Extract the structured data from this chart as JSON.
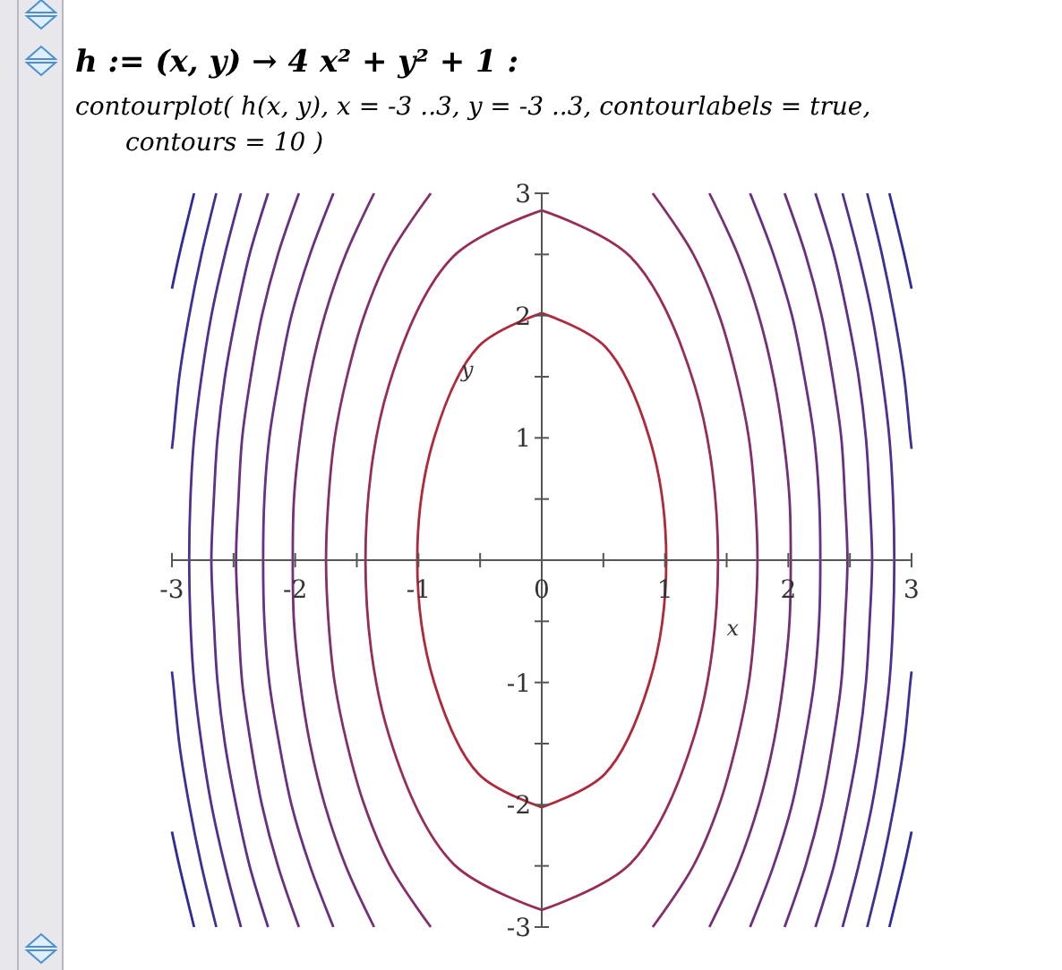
{
  "chart_data": {
    "type": "line",
    "title": "h := (x, y) → 4 x² + y² + 1 :",
    "subtitle": "contourplot( h(x, y), x = -3 ..3, y = -3 ..3, contourlabels = true, contours = 10 )",
    "xlabel": "x",
    "ylabel": "y",
    "xlim": [
      -3,
      3
    ],
    "ylim": [
      -3,
      3
    ],
    "xticks": [
      -3,
      {
        "value": -2.5,
        "label": null
      },
      -2,
      {
        "value": -1.5,
        "label": null
      },
      -1,
      {
        "value": -0.5,
        "label": null
      },
      0,
      {
        "value": 0.5,
        "label": null
      },
      1,
      {
        "value": 1.5,
        "label": null
      },
      2,
      {
        "value": 2.5,
        "label": null
      },
      3
    ],
    "yticks": [
      -3,
      {
        "value": -2.5,
        "label": null
      },
      -2,
      {
        "value": -1.5,
        "label": null
      },
      -1,
      {
        "value": -0.5,
        "label": null
      },
      {
        "value": 0,
        "label": null
      },
      {
        "value": 0.5,
        "label": null
      },
      1,
      {
        "value": 1.5,
        "label": null
      },
      2,
      {
        "value": 2.5,
        "label": null
      },
      3
    ],
    "grid": false,
    "marker": "none",
    "line_style": "solid",
    "series": [
      {
        "color": "#b0283a",
        "x": [
          0,
          0.51,
          0.87,
          1.01,
          0.87,
          0.51,
          0,
          null,
          0,
          -0.51,
          -0.87,
          -1.01,
          -0.87,
          -0.51,
          0
        ],
        "values": [
          -2.02,
          -1.75,
          -1.01,
          0,
          1.01,
          1.75,
          2.02,
          null,
          -2.02,
          -1.75,
          -1.01,
          0,
          1.01,
          1.75,
          2.02
        ]
      },
      {
        "color": "#982c58",
        "x": [
          0,
          0.72,
          1.24,
          1.43,
          1.24,
          0.72,
          0,
          null,
          0,
          -0.72,
          -1.24,
          -1.43,
          -1.24,
          -0.72,
          0
        ],
        "values": [
          -2.86,
          -2.48,
          -1.43,
          0,
          1.43,
          2.48,
          2.86,
          null,
          -2.86,
          -2.48,
          -1.43,
          0,
          1.43,
          2.48,
          2.86
        ]
      },
      {
        "color": "#842e6a",
        "x": [
          0.9,
          1.23,
          1.44,
          1.58,
          1.68,
          1.73,
          1.75,
          1.73,
          1.68,
          1.58,
          1.44,
          1.23,
          0.9,
          null,
          -0.9,
          -1.23,
          -1.44,
          -1.58,
          -1.68,
          -1.73,
          -1.75,
          -1.73,
          -1.68,
          -1.58,
          -1.44,
          -1.23,
          -0.9
        ],
        "values": [
          -3,
          -2.5,
          -2,
          -1.5,
          -1,
          -0.5,
          0,
          0.5,
          1,
          1.5,
          2,
          2.5,
          3,
          null,
          -3,
          -2.5,
          -2,
          -1.5,
          -1,
          -0.5,
          0,
          0.5,
          1,
          1.5,
          2,
          2.5,
          3
        ]
      },
      {
        "color": "#742f78",
        "x": [
          1.36,
          1.59,
          1.76,
          1.88,
          1.96,
          2.01,
          2.02,
          2.01,
          1.96,
          1.88,
          1.76,
          1.59,
          1.36,
          null,
          -1.36,
          -1.59,
          -1.76,
          -1.88,
          -1.96,
          -2.01,
          -2.02,
          -2.01,
          -1.96,
          -1.88,
          -1.76,
          -1.59,
          -1.36
        ],
        "values": [
          -3,
          -2.5,
          -2,
          -1.5,
          -1,
          -0.5,
          0,
          0.5,
          1,
          1.5,
          2,
          2.5,
          3,
          null,
          -3,
          -2.5,
          -2,
          -1.5,
          -1,
          -0.5,
          0,
          0.5,
          1,
          1.5,
          2,
          2.5,
          3
        ]
      },
      {
        "color": "#682f82",
        "x": [
          1.69,
          1.88,
          2.03,
          2.13,
          2.21,
          2.25,
          2.26,
          2.25,
          2.21,
          2.13,
          2.03,
          1.88,
          1.69,
          null,
          -1.69,
          -1.88,
          -2.03,
          -2.13,
          -2.21,
          -2.25,
          -2.26,
          -2.25,
          -2.21,
          -2.13,
          -2.03,
          -1.88,
          -1.69
        ],
        "values": [
          -3,
          -2.5,
          -2,
          -1.5,
          -1,
          -0.5,
          0,
          0.5,
          1,
          1.5,
          2,
          2.5,
          3,
          null,
          -3,
          -2.5,
          -2,
          -1.5,
          -1,
          -0.5,
          0,
          0.5,
          1,
          1.5,
          2,
          2.5,
          3
        ]
      },
      {
        "color": "#6a2f7f",
        "x": [
          1.97,
          2.14,
          2.27,
          2.36,
          2.43,
          2.46,
          2.48,
          2.46,
          2.43,
          2.36,
          2.27,
          2.14,
          1.97,
          null,
          -1.97,
          -2.14,
          -2.27,
          -2.36,
          -2.43,
          -2.46,
          -2.48,
          -2.46,
          -2.43,
          -2.36,
          -2.27,
          -2.14,
          -1.97
        ],
        "values": [
          -3,
          -2.5,
          -2,
          -1.5,
          -1,
          -0.5,
          0,
          0.5,
          1,
          1.5,
          2,
          2.5,
          3,
          null,
          -3,
          -2.5,
          -2,
          -1.5,
          -1,
          -0.5,
          0,
          0.5,
          1,
          1.5,
          2,
          2.5,
          3
        ]
      },
      {
        "color": "#5e2e88",
        "x": [
          2.22,
          2.37,
          2.48,
          2.57,
          2.63,
          2.66,
          2.68,
          2.66,
          2.63,
          2.57,
          2.48,
          2.37,
          2.22,
          null,
          -2.22,
          -2.37,
          -2.48,
          -2.57,
          -2.63,
          -2.66,
          -2.68,
          -2.66,
          -2.63,
          -2.57,
          -2.48,
          -2.37,
          -2.22
        ],
        "values": [
          -3,
          -2.5,
          -2,
          -1.5,
          -1,
          -0.5,
          0,
          0.5,
          1,
          1.5,
          2,
          2.5,
          3,
          null,
          -3,
          -2.5,
          -2,
          -1.5,
          -1,
          -0.5,
          0,
          0.5,
          1,
          1.5,
          2,
          2.5,
          3
        ]
      },
      {
        "color": "#522e90",
        "x": [
          2.44,
          2.57,
          2.68,
          2.76,
          2.82,
          2.85,
          2.86,
          2.85,
          2.82,
          2.76,
          2.68,
          2.57,
          2.44,
          null,
          -2.44,
          -2.57,
          -2.68,
          -2.76,
          -2.82,
          -2.85,
          -2.86,
          -2.85,
          -2.82,
          -2.76,
          -2.68,
          -2.57,
          -2.44
        ],
        "values": [
          -3,
          -2.5,
          -2,
          -1.5,
          -1,
          -0.5,
          0,
          0.5,
          1,
          1.5,
          2,
          2.5,
          3,
          null,
          -3,
          -2.5,
          -2,
          -1.5,
          -1,
          -0.5,
          0,
          0.5,
          1,
          1.5,
          2,
          2.5,
          3
        ]
      },
      {
        "color": "#432d96",
        "x": [
          2.64,
          2.76,
          2.86,
          2.94,
          2.99,
          3,
          null,
          3,
          2.99,
          2.94,
          2.86,
          2.76,
          2.64,
          null,
          -2.64,
          -2.76,
          -2.86,
          -2.94,
          -2.99,
          -3,
          null,
          -3,
          -2.99,
          -2.94,
          -2.86,
          -2.76,
          -2.64
        ],
        "values": [
          -3,
          -2.5,
          -2,
          -1.5,
          -1,
          -0.91,
          null,
          0.91,
          1,
          1.5,
          2,
          2.5,
          3,
          null,
          -3,
          -2.5,
          -2,
          -1.5,
          -1,
          -0.91,
          null,
          0.91,
          1,
          1.5,
          2,
          2.5,
          3
        ]
      },
      {
        "color": "#2c2c9c",
        "x": [
          2.82,
          2.94,
          3,
          null,
          3,
          2.94,
          2.82,
          null,
          -2.82,
          -2.94,
          -3,
          null,
          -3,
          -2.94,
          -2.82
        ],
        "values": [
          -3,
          -2.5,
          -2.22,
          null,
          2.22,
          2.5,
          3,
          null,
          -3,
          -2.5,
          -2.22,
          null,
          2.22,
          2.5,
          3
        ]
      }
    ]
  }
}
